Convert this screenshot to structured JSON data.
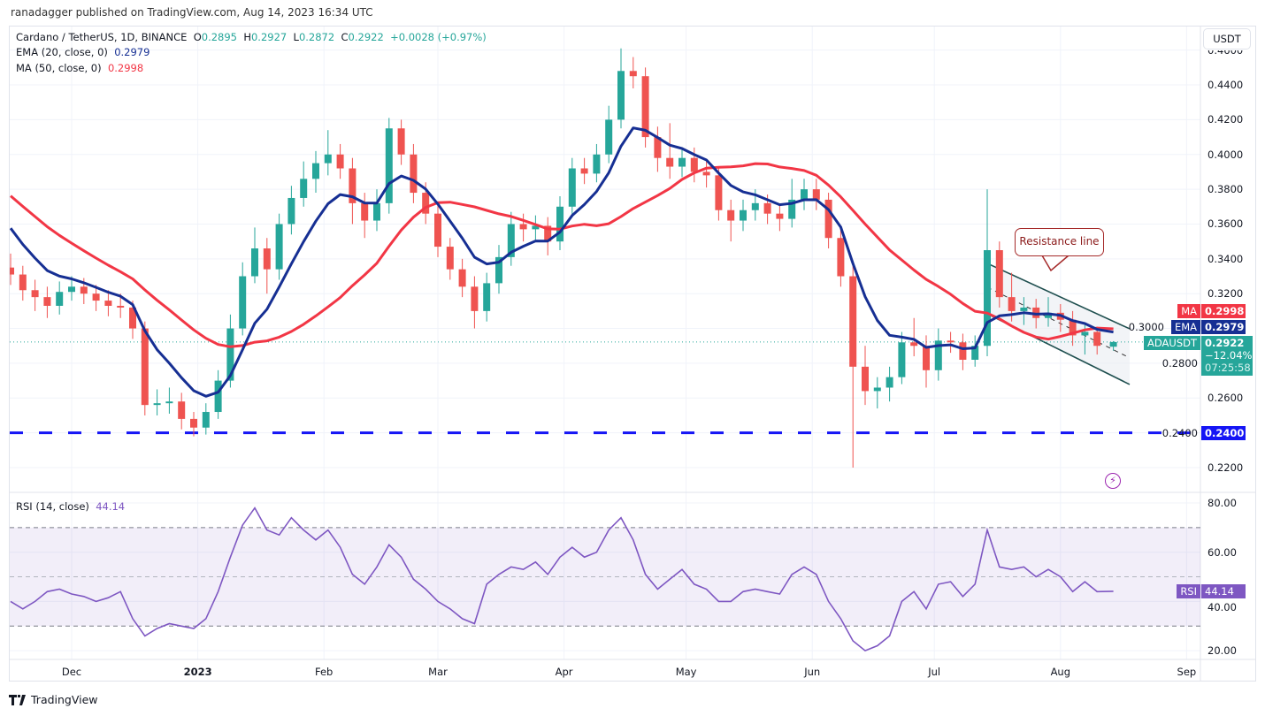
{
  "header": {
    "publisher_line": "ranadagger published on TradingView.com, Aug 14, 2023 16:34 UTC"
  },
  "legend": {
    "symbol": "Cardano / TetherUS, 1D, BINANCE",
    "o_label": "O",
    "o": "0.2895",
    "h_label": "H",
    "h": "0.2927",
    "l_label": "L",
    "l": "0.2872",
    "c_label": "C",
    "c": "0.2922",
    "change": "+0.0028 (+0.97%)",
    "ema_label": "EMA (20, close, 0)",
    "ema_value": "0.2979",
    "ma_label": "MA (50, close, 0)",
    "ma_value": "0.2998",
    "rsi_label": "RSI (14, close)",
    "rsi_value": "44.14"
  },
  "currency_button": "USDT",
  "price_tags": {
    "ma_name": "MA",
    "ma_value": "0.2998",
    "ema_name": "EMA",
    "ema_value": "0.2979",
    "symbol_name": "ADAUSDT",
    "last_price": "0.2922",
    "last_change": "−12.04%",
    "countdown": "07:25:58",
    "support_value": "0.2400",
    "rsi_name": "RSI",
    "rsi_value": "44.14"
  },
  "annotation": {
    "text": "Resistance line"
  },
  "footer": {
    "brand": "TradingView"
  },
  "colors": {
    "up": "#26a69a",
    "down": "#ef5350",
    "ema": "#162f93",
    "ma": "#f23645",
    "rsi": "#7e57c2",
    "support": "#1515f5",
    "channel": "#1f4f4f",
    "callout": "#a52a2a"
  },
  "icons": {
    "lightning": "lightning-icon",
    "logo": "tradingview-logo"
  },
  "chart_data": {
    "type": "candlestick",
    "interval": "1D",
    "grid": true,
    "price_axis": {
      "ticks": [
        "0.2200",
        "0.2400",
        "0.2600",
        "0.2800",
        "0.3000",
        "0.3200",
        "0.3400",
        "0.3600",
        "0.3800",
        "0.4000",
        "0.4200",
        "0.4400",
        "0.4600"
      ],
      "range": [
        0.214,
        0.461
      ]
    },
    "time_axis": {
      "ticks": [
        {
          "label": "Dec",
          "date": "2022-12-01"
        },
        {
          "label": "2023",
          "date": "2023-01-01"
        },
        {
          "label": "Feb",
          "date": "2023-02-01"
        },
        {
          "label": "Mar",
          "date": "2023-03-01"
        },
        {
          "label": "Apr",
          "date": "2023-04-01"
        },
        {
          "label": "May",
          "date": "2023-05-01"
        },
        {
          "label": "Jun",
          "date": "2023-06-01"
        },
        {
          "label": "Jul",
          "date": "2023-07-01"
        },
        {
          "label": "Aug",
          "date": "2023-08-01"
        },
        {
          "label": "Sep",
          "date": "2023-09-01"
        }
      ]
    },
    "candles_columns": [
      "date",
      "open",
      "high",
      "low",
      "close"
    ],
    "candles": [
      [
        "2022-11-16",
        0.335,
        0.343,
        0.325,
        0.331
      ],
      [
        "2022-11-19",
        0.331,
        0.336,
        0.316,
        0.322
      ],
      [
        "2022-11-22",
        0.322,
        0.328,
        0.31,
        0.318
      ],
      [
        "2022-11-25",
        0.318,
        0.324,
        0.306,
        0.313
      ],
      [
        "2022-11-28",
        0.313,
        0.327,
        0.308,
        0.321
      ],
      [
        "2022-12-01",
        0.321,
        0.33,
        0.316,
        0.324
      ],
      [
        "2022-12-04",
        0.324,
        0.329,
        0.314,
        0.32
      ],
      [
        "2022-12-07",
        0.32,
        0.325,
        0.31,
        0.316
      ],
      [
        "2022-12-10",
        0.316,
        0.322,
        0.307,
        0.313
      ],
      [
        "2022-12-13",
        0.313,
        0.32,
        0.306,
        0.312
      ],
      [
        "2022-12-16",
        0.312,
        0.316,
        0.294,
        0.3
      ],
      [
        "2022-12-19",
        0.3,
        0.304,
        0.25,
        0.256
      ],
      [
        "2022-12-22",
        0.256,
        0.265,
        0.25,
        0.257
      ],
      [
        "2022-12-25",
        0.257,
        0.266,
        0.251,
        0.258
      ],
      [
        "2022-12-28",
        0.258,
        0.263,
        0.242,
        0.248
      ],
      [
        "2022-12-31",
        0.248,
        0.252,
        0.238,
        0.243
      ],
      [
        "2023-01-03",
        0.243,
        0.257,
        0.239,
        0.252
      ],
      [
        "2023-01-06",
        0.252,
        0.276,
        0.248,
        0.27
      ],
      [
        "2023-01-09",
        0.27,
        0.308,
        0.266,
        0.3
      ],
      [
        "2023-01-12",
        0.3,
        0.338,
        0.296,
        0.33
      ],
      [
        "2023-01-15",
        0.33,
        0.358,
        0.326,
        0.346
      ],
      [
        "2023-01-18",
        0.346,
        0.352,
        0.32,
        0.334
      ],
      [
        "2023-01-21",
        0.334,
        0.366,
        0.328,
        0.36
      ],
      [
        "2023-01-24",
        0.36,
        0.382,
        0.354,
        0.375
      ],
      [
        "2023-01-27",
        0.375,
        0.396,
        0.37,
        0.386
      ],
      [
        "2023-01-30",
        0.386,
        0.402,
        0.378,
        0.395
      ],
      [
        "2023-02-02",
        0.395,
        0.414,
        0.388,
        0.4
      ],
      [
        "2023-02-05",
        0.4,
        0.406,
        0.386,
        0.392
      ],
      [
        "2023-02-08",
        0.392,
        0.398,
        0.36,
        0.372
      ],
      [
        "2023-02-11",
        0.372,
        0.378,
        0.352,
        0.362
      ],
      [
        "2023-02-14",
        0.362,
        0.38,
        0.356,
        0.372
      ],
      [
        "2023-02-17",
        0.372,
        0.421,
        0.366,
        0.415
      ],
      [
        "2023-02-20",
        0.415,
        0.42,
        0.394,
        0.4
      ],
      [
        "2023-02-23",
        0.4,
        0.406,
        0.372,
        0.378
      ],
      [
        "2023-02-26",
        0.378,
        0.384,
        0.36,
        0.366
      ],
      [
        "2023-03-01",
        0.366,
        0.372,
        0.341,
        0.347
      ],
      [
        "2023-03-04",
        0.347,
        0.352,
        0.328,
        0.334
      ],
      [
        "2023-03-07",
        0.334,
        0.34,
        0.318,
        0.324
      ],
      [
        "2023-03-10",
        0.324,
        0.33,
        0.3,
        0.31
      ],
      [
        "2023-03-13",
        0.31,
        0.332,
        0.304,
        0.326
      ],
      [
        "2023-03-16",
        0.326,
        0.348,
        0.32,
        0.341
      ],
      [
        "2023-03-19",
        0.341,
        0.367,
        0.336,
        0.36
      ],
      [
        "2023-03-22",
        0.36,
        0.366,
        0.35,
        0.357
      ],
      [
        "2023-03-25",
        0.357,
        0.365,
        0.351,
        0.359
      ],
      [
        "2023-03-28",
        0.359,
        0.364,
        0.342,
        0.35
      ],
      [
        "2023-03-31",
        0.35,
        0.376,
        0.345,
        0.37
      ],
      [
        "2023-04-03",
        0.37,
        0.398,
        0.365,
        0.392
      ],
      [
        "2023-04-06",
        0.392,
        0.398,
        0.383,
        0.389
      ],
      [
        "2023-04-09",
        0.389,
        0.406,
        0.384,
        0.4
      ],
      [
        "2023-04-12",
        0.4,
        0.428,
        0.395,
        0.42
      ],
      [
        "2023-04-15",
        0.42,
        0.461,
        0.415,
        0.448
      ],
      [
        "2023-04-18",
        0.448,
        0.456,
        0.438,
        0.445
      ],
      [
        "2023-04-21",
        0.445,
        0.45,
        0.404,
        0.41
      ],
      [
        "2023-04-24",
        0.41,
        0.416,
        0.39,
        0.398
      ],
      [
        "2023-04-27",
        0.398,
        0.418,
        0.386,
        0.393
      ],
      [
        "2023-04-30",
        0.393,
        0.404,
        0.387,
        0.398
      ],
      [
        "2023-05-03",
        0.398,
        0.404,
        0.384,
        0.39
      ],
      [
        "2023-05-06",
        0.39,
        0.396,
        0.381,
        0.388
      ],
      [
        "2023-05-09",
        0.388,
        0.393,
        0.362,
        0.368
      ],
      [
        "2023-05-12",
        0.368,
        0.374,
        0.35,
        0.362
      ],
      [
        "2023-05-15",
        0.362,
        0.374,
        0.356,
        0.368
      ],
      [
        "2023-05-18",
        0.368,
        0.38,
        0.362,
        0.372
      ],
      [
        "2023-05-21",
        0.372,
        0.377,
        0.36,
        0.366
      ],
      [
        "2023-05-24",
        0.366,
        0.371,
        0.356,
        0.363
      ],
      [
        "2023-05-27",
        0.363,
        0.386,
        0.358,
        0.374
      ],
      [
        "2023-05-30",
        0.374,
        0.386,
        0.368,
        0.38
      ],
      [
        "2023-06-02",
        0.38,
        0.386,
        0.368,
        0.374
      ],
      [
        "2023-06-05",
        0.374,
        0.378,
        0.346,
        0.352
      ],
      [
        "2023-06-08",
        0.352,
        0.358,
        0.324,
        0.33
      ],
      [
        "2023-06-11",
        0.33,
        0.336,
        0.22,
        0.278
      ],
      [
        "2023-06-14",
        0.278,
        0.29,
        0.256,
        0.264
      ],
      [
        "2023-06-17",
        0.264,
        0.272,
        0.254,
        0.266
      ],
      [
        "2023-06-20",
        0.266,
        0.278,
        0.258,
        0.272
      ],
      [
        "2023-06-23",
        0.272,
        0.298,
        0.268,
        0.292
      ],
      [
        "2023-06-26",
        0.292,
        0.306,
        0.284,
        0.29
      ],
      [
        "2023-06-29",
        0.29,
        0.296,
        0.266,
        0.276
      ],
      [
        "2023-07-02",
        0.276,
        0.3,
        0.27,
        0.293
      ],
      [
        "2023-07-05",
        0.293,
        0.298,
        0.286,
        0.292
      ],
      [
        "2023-07-08",
        0.292,
        0.297,
        0.276,
        0.282
      ],
      [
        "2023-07-11",
        0.282,
        0.296,
        0.278,
        0.29
      ],
      [
        "2023-07-14",
        0.29,
        0.38,
        0.284,
        0.345
      ],
      [
        "2023-07-17",
        0.345,
        0.35,
        0.312,
        0.318
      ],
      [
        "2023-07-20",
        0.318,
        0.332,
        0.304,
        0.31
      ],
      [
        "2023-07-23",
        0.31,
        0.318,
        0.302,
        0.312
      ],
      [
        "2023-07-26",
        0.312,
        0.317,
        0.3,
        0.306
      ],
      [
        "2023-07-29",
        0.306,
        0.318,
        0.301,
        0.309
      ],
      [
        "2023-08-01",
        0.309,
        0.314,
        0.298,
        0.305
      ],
      [
        "2023-08-04",
        0.305,
        0.31,
        0.29,
        0.296
      ],
      [
        "2023-08-07",
        0.296,
        0.302,
        0.285,
        0.298
      ],
      [
        "2023-08-10",
        0.298,
        0.301,
        0.285,
        0.29
      ],
      [
        "2023-08-14",
        0.2895,
        0.2927,
        0.2872,
        0.2922
      ]
    ],
    "last_price": 0.2922,
    "indicators": {
      "ema": {
        "name": "EMA",
        "period": 20,
        "last": 0.2979
      },
      "ma": {
        "name": "MA",
        "period": 50,
        "last": 0.2998
      }
    },
    "support_line": {
      "price": 0.24,
      "style": "dashed"
    },
    "channel": {
      "upper": [
        [
          "2023-07-14",
          0.3374
        ],
        [
          "2023-08-18",
          0.2998
        ]
      ],
      "middle": [
        [
          "2023-07-14",
          0.3237
        ],
        [
          "2023-08-18",
          0.2831
        ]
      ],
      "lower": [
        [
          "2023-07-14",
          0.3084
        ],
        [
          "2023-08-18",
          0.2678
        ]
      ]
    },
    "rsi": {
      "period": 14,
      "ticks": [
        "20.00",
        "40.00",
        "60.00",
        "80.00"
      ],
      "range": [
        15,
        85
      ],
      "bands": [
        30,
        50,
        70
      ],
      "values": [
        40,
        37,
        40,
        44,
        45,
        43,
        42,
        40,
        41.5,
        44,
        33,
        26,
        29,
        31,
        30,
        29,
        33,
        44,
        58,
        71,
        78,
        69,
        67,
        74,
        69,
        65,
        69,
        62,
        51,
        47,
        54,
        63,
        58,
        49,
        45,
        40,
        37,
        33,
        31,
        47,
        51,
        54,
        53,
        56,
        51,
        58,
        62,
        58,
        60,
        69,
        74,
        65,
        51,
        45,
        49,
        53,
        47,
        45,
        40,
        40,
        44,
        45,
        44,
        43,
        51,
        54,
        51,
        40,
        33,
        24,
        20,
        22,
        26,
        40,
        44,
        37,
        47,
        48,
        42,
        47,
        69,
        54,
        53,
        54,
        50,
        53,
        50,
        44,
        48,
        44,
        44.14
      ]
    }
  }
}
